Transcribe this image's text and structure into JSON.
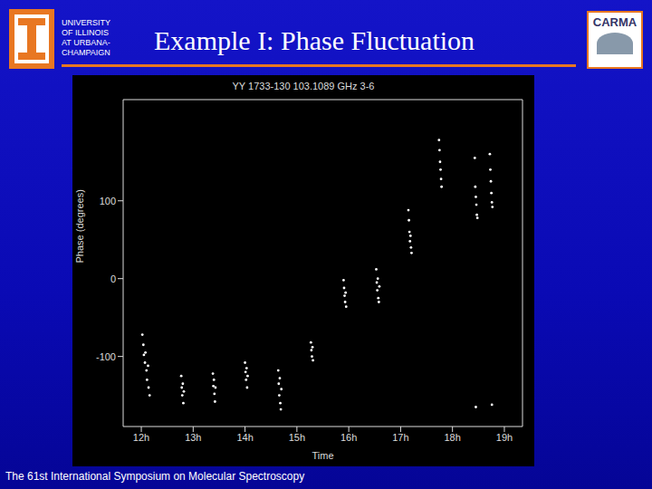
{
  "slide": {
    "title": "Example I: Phase Fluctuation",
    "institution": [
      "UNIVERSITY",
      "OF ILLINOIS",
      "AT URBANA-",
      "CHAMPAIGN"
    ],
    "logo": "CARMA",
    "footer": "The 61st International Symposium on Molecular Spectroscopy"
  },
  "chart_data": {
    "type": "scatter",
    "title": "YY  1733-130  103.1089 GHz  3-6",
    "x_label": "Time",
    "y_label": "Phase (degrees)",
    "color": "#ffffff",
    "marker": "dot",
    "xlim": [
      11.65,
      19.35
    ],
    "ylim": [
      -190,
      230
    ],
    "xticks": [
      {
        "value": 12,
        "label": "12h"
      },
      {
        "value": 13,
        "label": "13h"
      },
      {
        "value": 14,
        "label": "14h"
      },
      {
        "value": 15,
        "label": "15h"
      },
      {
        "value": 16,
        "label": "16h"
      },
      {
        "value": 17,
        "label": "17h"
      },
      {
        "value": 18,
        "label": "18h"
      },
      {
        "value": 19,
        "label": "19h"
      }
    ],
    "yticks": [
      -100,
      0,
      100
    ],
    "x": [
      12.02,
      12.04,
      12.05,
      12.07,
      12.08,
      12.1,
      12.11,
      12.13,
      12.14,
      12.16,
      12.77,
      12.78,
      12.79,
      12.8,
      12.81,
      12.82,
      13.38,
      13.39,
      13.4,
      13.41,
      13.42,
      13.43,
      14.0,
      14.01,
      14.02,
      14.03,
      14.04,
      14.05,
      14.64,
      14.65,
      14.66,
      14.67,
      14.68,
      14.69,
      14.7,
      15.27,
      15.28,
      15.29,
      15.3,
      15.31,
      15.9,
      15.91,
      15.92,
      15.93,
      15.94,
      15.95,
      16.53,
      16.54,
      16.55,
      16.56,
      16.57,
      16.58,
      16.59,
      17.15,
      17.16,
      17.17,
      17.18,
      17.19,
      17.2,
      17.21,
      17.74,
      17.75,
      17.76,
      17.77,
      17.78,
      17.79,
      18.43,
      18.44,
      18.45,
      18.46,
      18.47,
      18.48,
      18.45,
      18.72,
      18.73,
      18.74,
      18.75,
      18.76,
      18.77,
      18.76
    ],
    "values": [
      -72,
      -85,
      -98,
      -108,
      -95,
      -118,
      -130,
      -112,
      -140,
      -150,
      -125,
      -140,
      -150,
      -135,
      -160,
      -145,
      -122,
      -138,
      -130,
      -148,
      -158,
      -140,
      -108,
      -120,
      -130,
      -115,
      -140,
      -125,
      -118,
      -135,
      -150,
      -128,
      -160,
      -168,
      -142,
      -82,
      -92,
      -100,
      -88,
      -105,
      -2,
      -12,
      -22,
      -30,
      -18,
      -36,
      12,
      -5,
      -15,
      0,
      -25,
      -30,
      -10,
      88,
      75,
      60,
      48,
      55,
      40,
      33,
      178,
      165,
      150,
      140,
      128,
      118,
      155,
      118,
      105,
      95,
      82,
      78,
      -165,
      160,
      140,
      125,
      110,
      98,
      92,
      -162
    ]
  }
}
